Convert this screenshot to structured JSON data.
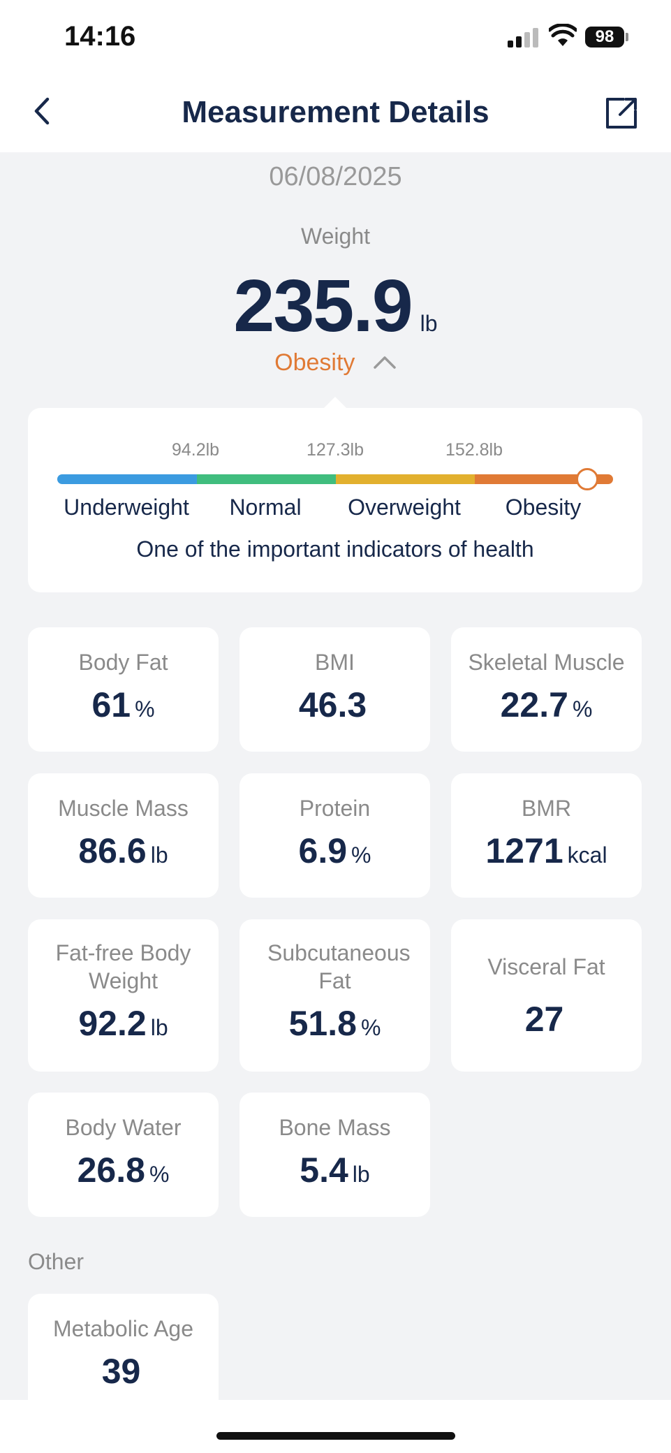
{
  "status_bar": {
    "time": "14:16",
    "battery": "98"
  },
  "header": {
    "title": "Measurement Details"
  },
  "date": "06/08/2025",
  "weight": {
    "label": "Weight",
    "value": "235.9",
    "unit": "lb",
    "status": "Obesity",
    "status_color": "#e07a35"
  },
  "range": {
    "thresholds": [
      "94.2lb",
      "127.3lb",
      "152.8lb"
    ],
    "categories": [
      {
        "name": "Underweight",
        "color": "#3b9be0"
      },
      {
        "name": "Normal",
        "color": "#40bd7e"
      },
      {
        "name": "Overweight",
        "color": "#e2b02e"
      },
      {
        "name": "Obesity",
        "color": "#e07a35"
      }
    ],
    "note": "One of the important indicators of health"
  },
  "metrics": [
    {
      "label": "Body Fat",
      "value": "61",
      "unit": "%"
    },
    {
      "label": "BMI",
      "value": "46.3",
      "unit": ""
    },
    {
      "label": "Skeletal Muscle",
      "value": "22.7",
      "unit": "%"
    },
    {
      "label": "Muscle Mass",
      "value": "86.6",
      "unit": "lb"
    },
    {
      "label": "Protein",
      "value": "6.9",
      "unit": "%"
    },
    {
      "label": "BMR",
      "value": "1271",
      "unit": "kcal"
    },
    {
      "label": "Fat-free Body Weight",
      "value": "92.2",
      "unit": "lb"
    },
    {
      "label": "Subcutaneous Fat",
      "value": "51.8",
      "unit": "%"
    },
    {
      "label": "Visceral Fat",
      "value": "27",
      "unit": ""
    },
    {
      "label": "Body Water",
      "value": "26.8",
      "unit": "%"
    },
    {
      "label": "Bone Mass",
      "value": "5.4",
      "unit": "lb"
    }
  ],
  "other": {
    "section_label": "Other",
    "metrics": [
      {
        "label": "Metabolic Age",
        "value": "39",
        "unit": ""
      }
    ]
  }
}
